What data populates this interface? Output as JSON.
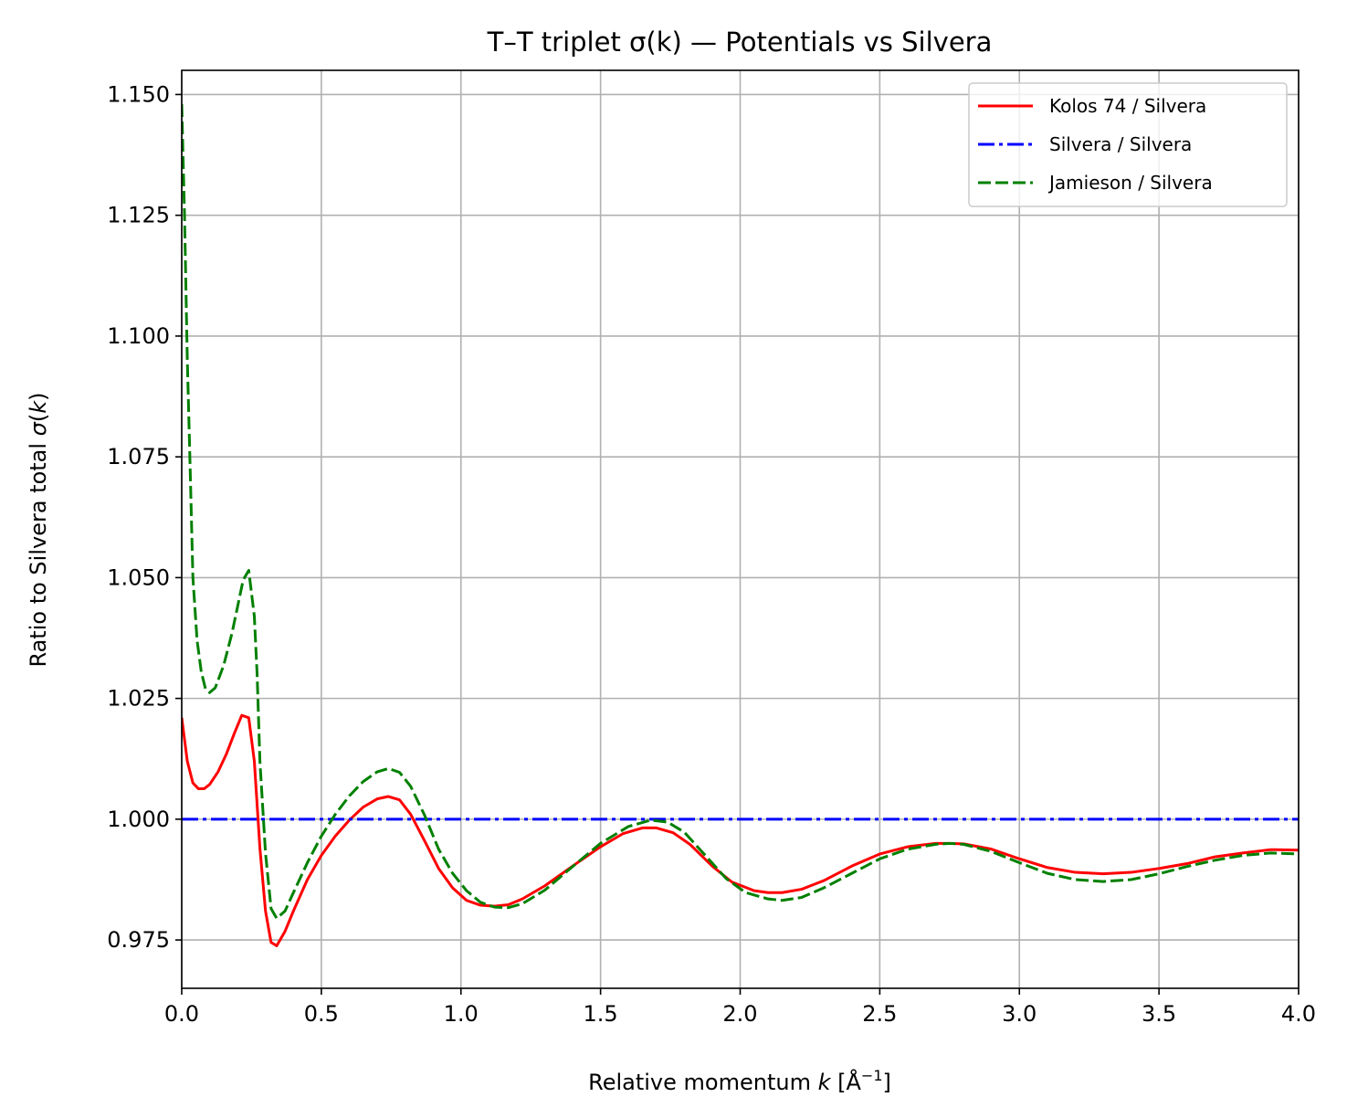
{
  "chart_data": {
    "type": "line",
    "title": "T–T triplet σ(k) — Potentials vs Silvera",
    "xlabel_parts": [
      "Relative momentum ",
      "k",
      " [Å",
      "−1",
      "]"
    ],
    "ylabel_parts": [
      "Ratio to Silvera total ",
      "σ",
      "(",
      "k",
      ")"
    ],
    "xlim": [
      0,
      4
    ],
    "ylim": [
      0.965,
      1.155
    ],
    "xticks": [
      0.0,
      0.5,
      1.0,
      1.5,
      2.0,
      2.5,
      3.0,
      3.5,
      4.0
    ],
    "xtick_labels": [
      "0.0",
      "0.5",
      "1.0",
      "1.5",
      "2.0",
      "2.5",
      "3.0",
      "3.5",
      "4.0"
    ],
    "yticks": [
      0.975,
      1.0,
      1.025,
      1.05,
      1.075,
      1.1,
      1.125,
      1.15
    ],
    "ytick_labels": [
      "0.975",
      "1.000",
      "1.025",
      "1.050",
      "1.075",
      "1.100",
      "1.125",
      "1.150"
    ],
    "grid": true,
    "legend_position": "top-right",
    "series": [
      {
        "name": "Kolos 74 / Silvera",
        "color": "#ff0000",
        "style": "solid",
        "points": [
          [
            0.0,
            1.021
          ],
          [
            0.02,
            1.012
          ],
          [
            0.04,
            1.0075
          ],
          [
            0.06,
            1.0063
          ],
          [
            0.08,
            1.0063
          ],
          [
            0.1,
            1.0072
          ],
          [
            0.13,
            1.0098
          ],
          [
            0.16,
            1.0135
          ],
          [
            0.19,
            1.018
          ],
          [
            0.215,
            1.0215
          ],
          [
            0.24,
            1.021
          ],
          [
            0.26,
            1.012
          ],
          [
            0.28,
            0.994
          ],
          [
            0.3,
            0.981
          ],
          [
            0.32,
            0.9745
          ],
          [
            0.34,
            0.9738
          ],
          [
            0.37,
            0.9768
          ],
          [
            0.4,
            0.981
          ],
          [
            0.45,
            0.9875
          ],
          [
            0.5,
            0.9925
          ],
          [
            0.55,
            0.9965
          ],
          [
            0.6,
            0.9998
          ],
          [
            0.65,
            1.0025
          ],
          [
            0.7,
            1.0042
          ],
          [
            0.74,
            1.0047
          ],
          [
            0.78,
            1.004
          ],
          [
            0.82,
            1.001
          ],
          [
            0.87,
            0.9955
          ],
          [
            0.92,
            0.9898
          ],
          [
            0.97,
            0.9858
          ],
          [
            1.02,
            0.9832
          ],
          [
            1.07,
            0.9822
          ],
          [
            1.12,
            0.982
          ],
          [
            1.17,
            0.9823
          ],
          [
            1.22,
            0.9835
          ],
          [
            1.3,
            0.9862
          ],
          [
            1.4,
            0.9903
          ],
          [
            1.5,
            0.9943
          ],
          [
            1.58,
            0.997
          ],
          [
            1.65,
            0.9982
          ],
          [
            1.7,
            0.9982
          ],
          [
            1.76,
            0.9972
          ],
          [
            1.82,
            0.9948
          ],
          [
            1.9,
            0.9903
          ],
          [
            1.97,
            0.987
          ],
          [
            2.05,
            0.9852
          ],
          [
            2.1,
            0.9848
          ],
          [
            2.15,
            0.9848
          ],
          [
            2.22,
            0.9855
          ],
          [
            2.3,
            0.9873
          ],
          [
            2.4,
            0.9903
          ],
          [
            2.5,
            0.9928
          ],
          [
            2.6,
            0.9943
          ],
          [
            2.7,
            0.995
          ],
          [
            2.75,
            0.995
          ],
          [
            2.8,
            0.9949
          ],
          [
            2.9,
            0.9938
          ],
          [
            3.0,
            0.9918
          ],
          [
            3.1,
            0.99
          ],
          [
            3.2,
            0.989
          ],
          [
            3.3,
            0.9887
          ],
          [
            3.4,
            0.989
          ],
          [
            3.5,
            0.9898
          ],
          [
            3.6,
            0.9908
          ],
          [
            3.7,
            0.9922
          ],
          [
            3.8,
            0.993
          ],
          [
            3.9,
            0.9937
          ],
          [
            4.0,
            0.9936
          ]
        ]
      },
      {
        "name": "Silvera / Silvera",
        "color": "#0000ff",
        "style": "dashdot",
        "points": [
          [
            0.0,
            1.0
          ],
          [
            4.0,
            1.0
          ]
        ]
      },
      {
        "name": "Jamieson / Silvera",
        "color": "#008000",
        "style": "dashed",
        "points": [
          [
            0.0,
            1.148
          ],
          [
            0.01,
            1.125
          ],
          [
            0.02,
            1.095
          ],
          [
            0.03,
            1.073
          ],
          [
            0.04,
            1.05
          ],
          [
            0.055,
            1.037
          ],
          [
            0.07,
            1.0305
          ],
          [
            0.085,
            1.027
          ],
          [
            0.1,
            1.0262
          ],
          [
            0.12,
            1.0272
          ],
          [
            0.15,
            1.0318
          ],
          [
            0.18,
            1.0385
          ],
          [
            0.2,
            1.044
          ],
          [
            0.22,
            1.0495
          ],
          [
            0.24,
            1.0515
          ],
          [
            0.26,
            1.042
          ],
          [
            0.27,
            1.03
          ],
          [
            0.28,
            1.012
          ],
          [
            0.3,
            0.993
          ],
          [
            0.32,
            0.9815
          ],
          [
            0.34,
            0.9795
          ],
          [
            0.37,
            0.981
          ],
          [
            0.4,
            0.9848
          ],
          [
            0.45,
            0.991
          ],
          [
            0.5,
            0.9965
          ],
          [
            0.55,
            1.001
          ],
          [
            0.6,
            1.0048
          ],
          [
            0.65,
            1.0078
          ],
          [
            0.7,
            1.0098
          ],
          [
            0.74,
            1.0105
          ],
          [
            0.78,
            1.0097
          ],
          [
            0.82,
            1.0068
          ],
          [
            0.87,
            1.0008
          ],
          [
            0.92,
            0.9938
          ],
          [
            0.97,
            0.9888
          ],
          [
            1.02,
            0.9852
          ],
          [
            1.07,
            0.9828
          ],
          [
            1.12,
            0.9818
          ],
          [
            1.17,
            0.9817
          ],
          [
            1.22,
            0.9825
          ],
          [
            1.3,
            0.9853
          ],
          [
            1.4,
            0.9902
          ],
          [
            1.5,
            0.995
          ],
          [
            1.6,
            0.9985
          ],
          [
            1.68,
            0.9998
          ],
          [
            1.74,
            0.9994
          ],
          [
            1.8,
            0.9973
          ],
          [
            1.88,
            0.9922
          ],
          [
            1.95,
            0.9877
          ],
          [
            2.02,
            0.9848
          ],
          [
            2.1,
            0.9835
          ],
          [
            2.15,
            0.9832
          ],
          [
            2.22,
            0.9838
          ],
          [
            2.3,
            0.9858
          ],
          [
            2.4,
            0.9888
          ],
          [
            2.5,
            0.9918
          ],
          [
            2.6,
            0.9938
          ],
          [
            2.7,
            0.9948
          ],
          [
            2.75,
            0.995
          ],
          [
            2.8,
            0.9948
          ],
          [
            2.9,
            0.9933
          ],
          [
            3.0,
            0.991
          ],
          [
            3.1,
            0.9888
          ],
          [
            3.2,
            0.9875
          ],
          [
            3.3,
            0.9871
          ],
          [
            3.4,
            0.9875
          ],
          [
            3.5,
            0.9887
          ],
          [
            3.6,
            0.9902
          ],
          [
            3.7,
            0.9915
          ],
          [
            3.8,
            0.9925
          ],
          [
            3.9,
            0.993
          ],
          [
            4.0,
            0.9928
          ]
        ]
      }
    ]
  }
}
